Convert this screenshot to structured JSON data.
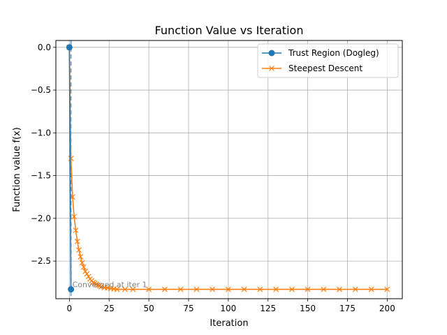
{
  "chart_data": {
    "type": "line",
    "title": "Function Value vs Iteration",
    "xlabel": "Iteration",
    "ylabel": "Function value f(x)",
    "xlim": [
      -8.5,
      209.5
    ],
    "ylim": [
      -2.94,
      0.08
    ],
    "xticks": [
      0,
      25,
      50,
      75,
      100,
      125,
      150,
      175,
      200
    ],
    "yticks": [
      0.0,
      -0.5,
      -1.0,
      -1.5,
      -2.0,
      -2.5
    ],
    "xtick_labels": [
      "0",
      "25",
      "50",
      "75",
      "100",
      "125",
      "150",
      "175",
      "200"
    ],
    "ytick_labels": [
      "0.0",
      "−0.5",
      "−1.0",
      "−1.5",
      "−2.0",
      "−2.5"
    ],
    "grid": true,
    "legend_position": "top-right",
    "annotation": {
      "text": "Converged at iter 1",
      "x": 1,
      "y": -2.83
    },
    "vline_x": 1,
    "series": [
      {
        "name": "Trust Region (Dogleg)",
        "color": "#1f77b4",
        "marker": "circle",
        "x": [
          0,
          1
        ],
        "y": [
          0.0,
          -2.83
        ]
      },
      {
        "name": "Steepest Descent",
        "color": "#ff7f0e",
        "marker": "x",
        "x": [
          0,
          1,
          2,
          3,
          4,
          5,
          6,
          7,
          8,
          9,
          10,
          11,
          12,
          13,
          14,
          15,
          16,
          17,
          18,
          19,
          20,
          22,
          24,
          26,
          28,
          30,
          35,
          40,
          50,
          60,
          70,
          80,
          90,
          100,
          110,
          120,
          130,
          140,
          150,
          160,
          170,
          180,
          190,
          200
        ],
        "y": [
          0.0,
          -1.3,
          -1.75,
          -1.98,
          -2.14,
          -2.27,
          -2.37,
          -2.45,
          -2.52,
          -2.57,
          -2.62,
          -2.65,
          -2.68,
          -2.71,
          -2.73,
          -2.75,
          -2.76,
          -2.77,
          -2.78,
          -2.79,
          -2.8,
          -2.81,
          -2.815,
          -2.82,
          -2.825,
          -2.83,
          -2.83,
          -2.83,
          -2.83,
          -2.83,
          -2.83,
          -2.83,
          -2.83,
          -2.83,
          -2.83,
          -2.83,
          -2.83,
          -2.83,
          -2.83,
          -2.83,
          -2.83,
          -2.83,
          -2.83,
          -2.83
        ]
      }
    ]
  }
}
